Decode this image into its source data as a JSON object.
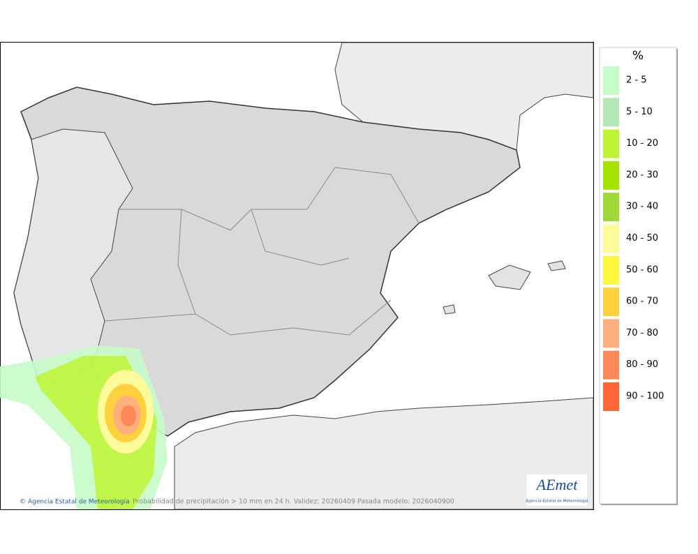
{
  "legend": {
    "title": "%",
    "items": [
      {
        "label": "2 - 5",
        "color": "#c6fcc8"
      },
      {
        "label": "5 - 10",
        "color": "#b4e8b6"
      },
      {
        "label": "10 - 20",
        "color": "#bef434"
      },
      {
        "label": "20 - 30",
        "color": "#a6e200"
      },
      {
        "label": "30 - 40",
        "color": "#a0d83a"
      },
      {
        "label": "40 - 50",
        "color": "#fdfa9a"
      },
      {
        "label": "50 - 60",
        "color": "#fdf83e"
      },
      {
        "label": "60 - 70",
        "color": "#fdd23e"
      },
      {
        "label": "70 - 80",
        "color": "#fdb07e"
      },
      {
        "label": "80 - 90",
        "color": "#fd885a"
      },
      {
        "label": "90 - 100",
        "color": "#fd6636"
      }
    ]
  },
  "footer": {
    "credit": "Agencia Estatal de Meteorología",
    "caption": "Probabilidad de precipitación > 10 mm en 24 h. Validez: 20260409 Pasada modelo: 2026040900"
  },
  "logo": {
    "name": "AEmet",
    "subtitle": "Agencia Estatal de Meteorología"
  }
}
